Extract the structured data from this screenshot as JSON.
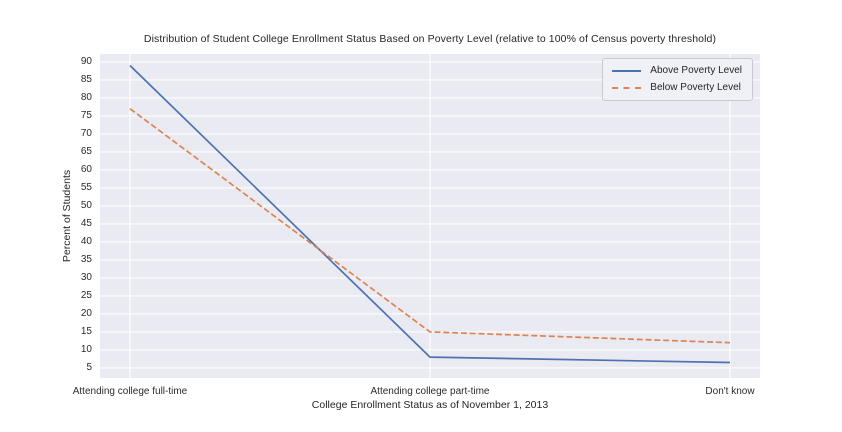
{
  "chart_data": {
    "type": "line",
    "title": "Distribution of Student College Enrollment Status Based on Poverty Level (relative to 100% of Census poverty threshold)",
    "xlabel": "College Enrollment Status as of November 1, 2013",
    "ylabel": "Percent of Students",
    "categories": [
      "Attending college full-time",
      "Attending college part-time",
      "Don't know"
    ],
    "series": [
      {
        "name": "Above Poverty Level",
        "values": [
          89,
          8,
          6.5
        ],
        "color": "#4c72b0",
        "dash": "solid"
      },
      {
        "name": "Below Poverty Level",
        "values": [
          77,
          15,
          12
        ],
        "color": "#dd8452",
        "dash": "dashed"
      }
    ],
    "yticks": [
      5,
      10,
      15,
      20,
      25,
      30,
      35,
      40,
      45,
      50,
      55,
      60,
      65,
      70,
      75,
      80,
      85,
      90
    ],
    "ylim": [
      2.2,
      92.2
    ],
    "grid": true,
    "grid_color": "#ffffff",
    "plot_bg_color": "#eaeaf2",
    "text_color": "#262626",
    "legend_position": "upper right"
  }
}
